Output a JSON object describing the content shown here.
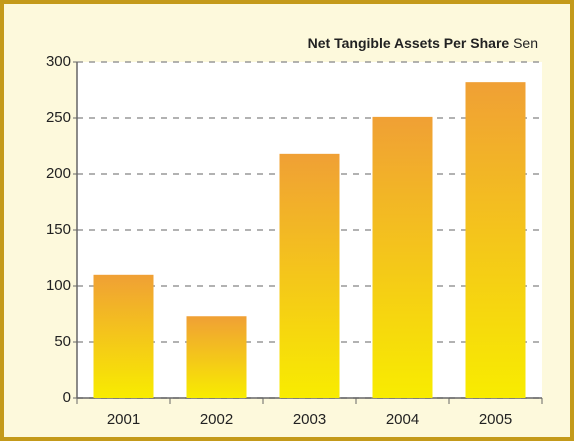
{
  "chart_data": {
    "type": "bar",
    "title": "Net Tangible Assets Per Share",
    "unit": "Sen",
    "categories": [
      "2001",
      "2002",
      "2003",
      "2004",
      "2005"
    ],
    "values": [
      110,
      73,
      218,
      251,
      282
    ],
    "color_top": "#f0a035",
    "color_bottom": "#f8ec00",
    "ylim": [
      0,
      300
    ],
    "yticks": [
      0,
      50,
      100,
      150,
      200,
      250,
      300
    ],
    "grid": true
  }
}
